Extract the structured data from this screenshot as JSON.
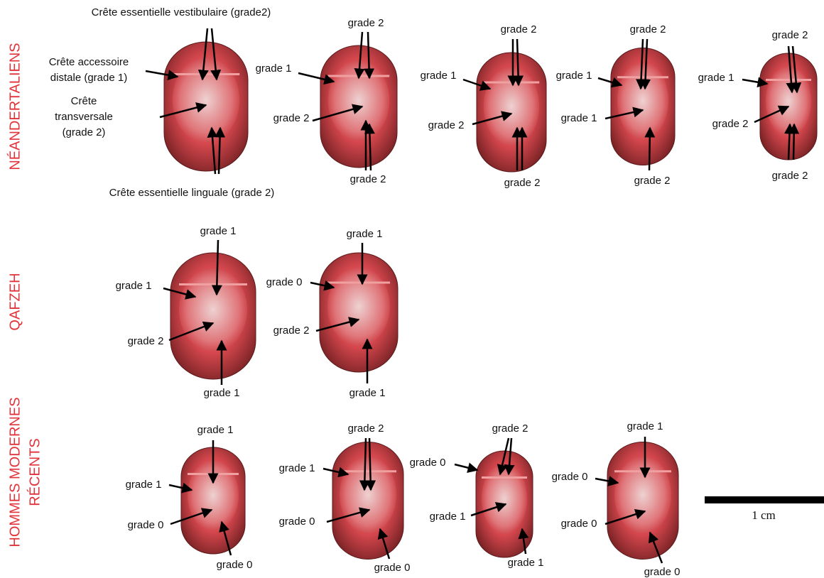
{
  "groups": [
    {
      "label": [
        "NÉANDERTALIENS"
      ],
      "specimens": [
        {
          "labels": [
            "Crête essentielle vestibulaire (grade2)",
            "Crête accessoire",
            "distale (grade 1)",
            "Crête",
            "transversale",
            "(grade 2)",
            "Crête essentielle linguale (grade 2)"
          ]
        },
        {
          "labels": [
            "grade 2",
            "grade 1",
            "grade 2",
            "grade 2"
          ]
        },
        {
          "labels": [
            "grade 2",
            "grade 1",
            "grade 2",
            "grade 2"
          ]
        },
        {
          "labels": [
            "grade 2",
            "grade 1",
            "grade 1",
            "grade 2"
          ]
        },
        {
          "labels": [
            "grade 2",
            "grade 1",
            "grade 2",
            "grade 2"
          ]
        }
      ]
    },
    {
      "label": [
        "QAFZEH"
      ],
      "specimens": [
        {
          "labels": [
            "grade 1",
            "grade 1",
            "grade 2",
            "grade 1"
          ]
        },
        {
          "labels": [
            "grade 1",
            "grade 0",
            "grade 2",
            "grade 1"
          ]
        }
      ]
    },
    {
      "label": [
        "HOMMES MODERNES",
        "RÉCENTS"
      ],
      "specimens": [
        {
          "labels": [
            "grade 1",
            "grade 1",
            "grade 0",
            "grade 0"
          ]
        },
        {
          "labels": [
            "grade 2",
            "grade 1",
            "grade 0",
            "grade 0"
          ]
        },
        {
          "labels": [
            "grade 2",
            "grade 0",
            "grade 1",
            "grade 1"
          ]
        },
        {
          "labels": [
            "grade 1",
            "grade 0",
            "grade 0",
            "grade 0"
          ]
        }
      ]
    }
  ],
  "scale_bar": {
    "label": "1 cm"
  }
}
